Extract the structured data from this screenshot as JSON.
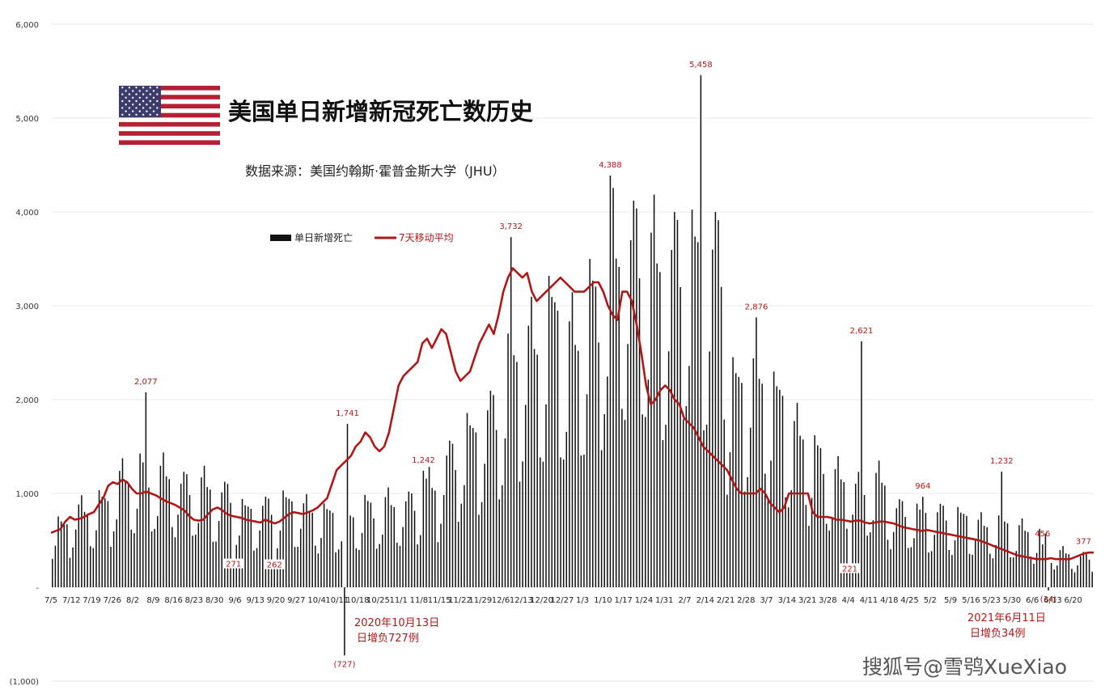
{
  "chart_data": {
    "type": "bar",
    "title": "美国单日新增新冠死亡数历史",
    "subtitle": "数据来源：美国约翰斯·霍普金斯大学（JHU）",
    "legend": [
      {
        "label": "单日新增死亡",
        "color": "#111111",
        "kind": "bar"
      },
      {
        "label": "7天移动平均",
        "color": "#b01818",
        "kind": "line"
      }
    ],
    "legend_position": "top-left",
    "ylim": [
      -1000,
      6000
    ],
    "y_ticks": [
      {
        "value": 6000,
        "label": "6,000"
      },
      {
        "value": 5000,
        "label": "5,000"
      },
      {
        "value": 4000,
        "label": "4,000"
      },
      {
        "value": 3000,
        "label": "3,000"
      },
      {
        "value": 2000,
        "label": "2,000"
      },
      {
        "value": 1000,
        "label": "1,000"
      },
      {
        "value": 0,
        "label": "-"
      },
      {
        "value": -1000,
        "label": "(1,000)"
      }
    ],
    "grid": true,
    "x_labels": [
      "7/5",
      "7/12",
      "7/19",
      "7/26",
      "8/2",
      "8/9",
      "8/16",
      "8/23",
      "8/30",
      "9/6",
      "9/13",
      "9/20",
      "9/27",
      "10/4",
      "10/11",
      "10/18",
      "10/25",
      "11/1",
      "11/8",
      "11/15",
      "11/22",
      "11/29",
      "12/6",
      "12/13",
      "12/20",
      "12/27",
      "1/3",
      "1/10",
      "1/17",
      "1/24",
      "1/31",
      "2/7",
      "2/14",
      "2/21",
      "2/28",
      "3/7",
      "3/14",
      "3/21",
      "3/28",
      "4/4",
      "4/11",
      "4/18",
      "4/25",
      "5/2",
      "5/9",
      "5/16",
      "5/23",
      "5/30",
      "6/6",
      "6/13",
      "6/20"
    ],
    "weekly_base": [
      600,
      760,
      810,
      1050,
      1100,
      1080,
      1000,
      960,
      900,
      760,
      760,
      820,
      770,
      700,
      710,
      760,
      800,
      830,
      950,
      1250,
      1500,
      1650,
      2150,
      2400,
      2600,
      2400,
      2700,
      3200,
      3350,
      3100,
      3200,
      3250,
      3150,
      1950,
      2100,
      1800,
      1500,
      1250,
      1050,
      1000,
      1000,
      750,
      720,
      700,
      680,
      620,
      600,
      560,
      480,
      330,
      300
    ],
    "daily_weekday_factors": [
      0.55,
      0.75,
      1.2,
      1.25,
      1.15,
      1.05,
      0.55
    ],
    "seven_day_average": [
      580,
      600,
      620,
      700,
      750,
      720,
      730,
      750,
      780,
      800,
      880,
      950,
      1080,
      1120,
      1100,
      1150,
      1120,
      1050,
      1000,
      1000,
      1020,
      1000,
      980,
      950,
      920,
      900,
      880,
      850,
      820,
      760,
      720,
      710,
      720,
      780,
      830,
      850,
      820,
      780,
      760,
      750,
      740,
      720,
      710,
      700,
      690,
      720,
      700,
      680,
      700,
      740,
      780,
      800,
      790,
      780,
      800,
      820,
      850,
      900,
      950,
      1100,
      1250,
      1300,
      1350,
      1400,
      1500,
      1550,
      1650,
      1600,
      1500,
      1450,
      1500,
      1650,
      1900,
      2150,
      2250,
      2300,
      2350,
      2400,
      2600,
      2650,
      2550,
      2650,
      2750,
      2700,
      2500,
      2300,
      2200,
      2250,
      2300,
      2450,
      2600,
      2700,
      2800,
      2700,
      2900,
      3150,
      3300,
      3400,
      3350,
      3300,
      3350,
      3150,
      3050,
      3100,
      3150,
      3200,
      3250,
      3300,
      3250,
      3200,
      3150,
      3150,
      3150,
      3200,
      3250,
      3250,
      3150,
      3000,
      2900,
      2850,
      3150,
      3150,
      3050,
      2800,
      2500,
      2150,
      1950,
      2000,
      2100,
      2150,
      2100,
      2000,
      1950,
      1800,
      1750,
      1700,
      1600,
      1500,
      1450,
      1400,
      1350,
      1300,
      1250,
      1150,
      1050,
      1000,
      1000,
      1000,
      1000,
      1050,
      1000,
      900,
      850,
      800,
      850,
      1000,
      1000,
      1000,
      1000,
      1000,
      800,
      750,
      750,
      750,
      740,
      720,
      720,
      710,
      700,
      710,
      710,
      690,
      680,
      690,
      700,
      700,
      690,
      680,
      660,
      640,
      630,
      620,
      610,
      600,
      610,
      600,
      590,
      580,
      570,
      560,
      550,
      540,
      530,
      520,
      510,
      500,
      480,
      460,
      440,
      420,
      400,
      380,
      360,
      340,
      330,
      320,
      310,
      300,
      300,
      300,
      310,
      300,
      300,
      300,
      300,
      320,
      340,
      360,
      370,
      370
    ],
    "peak_labels": [
      {
        "x": "8/6",
        "value": 2077,
        "label": "2,077"
      },
      {
        "x": "10/14",
        "value": 1741,
        "label": "1,741"
      },
      {
        "x": "11/9",
        "value": 1242,
        "label": "1,242"
      },
      {
        "x": "12/9",
        "value": 3732,
        "label": "3,732"
      },
      {
        "x": "1/12",
        "value": 4388,
        "label": "4,388"
      },
      {
        "x": "2/12",
        "value": 5458,
        "label": "5,458"
      },
      {
        "x": "3/3",
        "value": 2876,
        "label": "2,876"
      },
      {
        "x": "4/8",
        "value": 2621,
        "label": "2,621"
      },
      {
        "x": "4/29",
        "value": 964,
        "label": "964"
      },
      {
        "x": "5/26",
        "value": 1232,
        "label": "1,232"
      },
      {
        "x": "6/9",
        "value": 456,
        "label": "456"
      },
      {
        "x": "6/23",
        "value": 377,
        "label": "377"
      }
    ],
    "low_labels": [
      {
        "x": "9/5",
        "value": 271,
        "label": "271"
      },
      {
        "x": "9/19",
        "value": 262,
        "label": "262"
      },
      {
        "x": "4/4",
        "value": 221,
        "label": "221"
      }
    ],
    "negative_points": [
      {
        "x": "10/13",
        "value": -727,
        "label": "(727)",
        "note_line1": "2020年10月13日",
        "note_line2": "日增负727例"
      },
      {
        "x": "6/11",
        "value": -34,
        "label": "(34)",
        "note_line1": "2021年6月11日",
        "note_line2": "日增负34例"
      }
    ]
  },
  "watermark": "搜狐号@雪鸮XueXiao",
  "flag_icon": "us-flag-icon"
}
